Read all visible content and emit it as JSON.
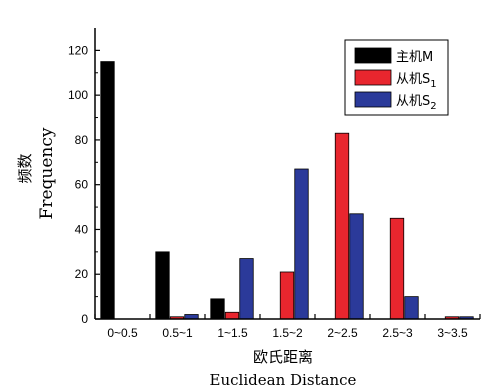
{
  "chart_data": {
    "type": "bar",
    "categories": [
      "0~0.5",
      "0.5~1",
      "1~1.5",
      "1.5~2",
      "2~2.5",
      "2.5~3",
      "3~3.5"
    ],
    "series": [
      {
        "name": "主机M",
        "name_main": "主机M",
        "name_sub": "",
        "color": "#000000",
        "values": [
          115,
          30,
          9,
          0,
          0,
          0,
          0
        ]
      },
      {
        "name": "从机S1",
        "name_main": "从机S",
        "name_sub": "1",
        "color": "#e8262e",
        "values": [
          0,
          1,
          3,
          21,
          83,
          45,
          1
        ]
      },
      {
        "name": "从机S2",
        "name_main": "从机S",
        "name_sub": "2",
        "color": "#2b3a9a",
        "values": [
          0,
          2,
          27,
          67,
          47,
          10,
          1
        ]
      }
    ],
    "ylabel_cn": "频数",
    "ylabel_en": "Frequency",
    "xlabel_cn": "欧氏距离",
    "xlabel_en": "Euclidean Distance",
    "ylim": [
      0,
      130
    ],
    "yticks": [
      0,
      20,
      40,
      60,
      80,
      100,
      120
    ],
    "grid": false,
    "legend_position": "top-right"
  }
}
